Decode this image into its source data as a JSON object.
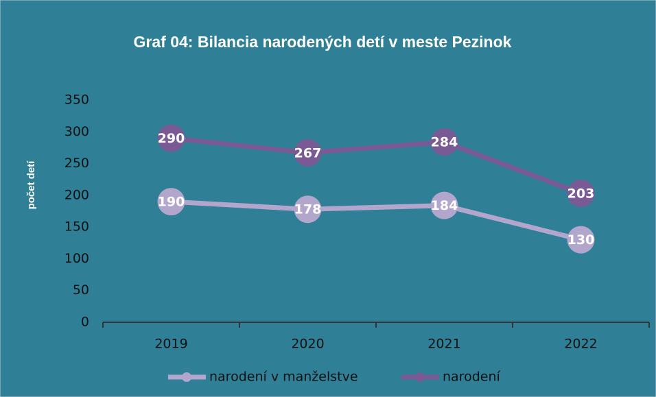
{
  "chart_data": {
    "type": "line",
    "title": "Graf 04: Bilancia narodených detí v meste Pezinok",
    "y_label": "počet detí",
    "categories": [
      "2019",
      "2020",
      "2021",
      "2022"
    ],
    "series": [
      {
        "name": "narodení v manželstve",
        "color": "#b3a6cc",
        "values": [
          190,
          178,
          184,
          130
        ]
      },
      {
        "name": "narodení",
        "color": "#7a5a95",
        "values": [
          290,
          267,
          284,
          203
        ]
      }
    ],
    "ylim": [
      0,
      350
    ],
    "yticks": [
      0,
      50,
      100,
      150,
      200,
      250,
      300,
      350
    ],
    "grid": false,
    "legend": "bottom",
    "data_labels": true,
    "background": "#2f8097"
  }
}
